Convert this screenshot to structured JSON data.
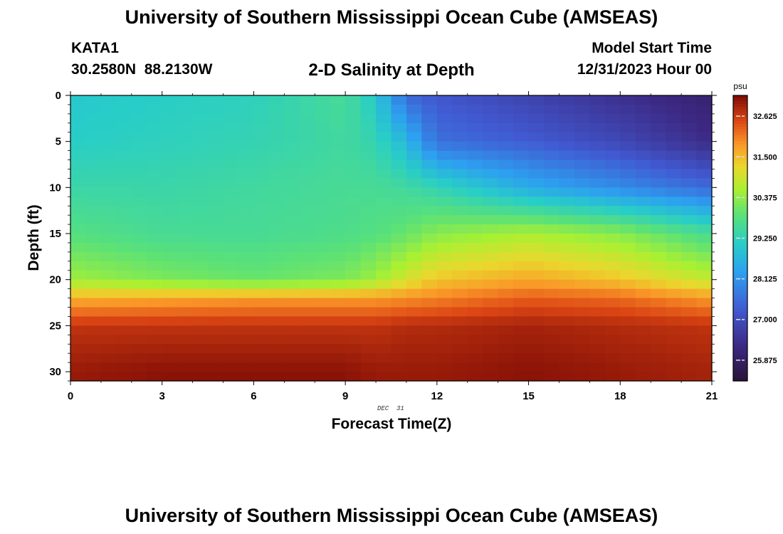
{
  "header": {
    "title": "University of Southern Mississippi Ocean Cube (AMSEAS)",
    "station": "KATA1",
    "coords": "30.2580N  88.2130W",
    "subtitle": "2-D Salinity at Depth",
    "start_label": "Model Start Time",
    "start_value": "12/31/2023 Hour 00",
    "footer_title": "University of Southern Mississippi Ocean Cube (AMSEAS)"
  },
  "chart_data": {
    "type": "heatmap",
    "title": "2-D Salinity at Depth",
    "xlabel": "Forecast Time(Z)",
    "ylabel": "Depth (ft)",
    "date_label": "DEC  31",
    "x_ticks": [
      0,
      3,
      6,
      9,
      12,
      15,
      18,
      21
    ],
    "y_ticks": [
      0,
      5,
      10,
      15,
      20,
      25,
      30
    ],
    "xlim": [
      0,
      21
    ],
    "ylim": [
      31,
      0
    ],
    "colorbar": {
      "unit": "psu",
      "ticks": [
        "32.625",
        "31.500",
        "30.375",
        "29.250",
        "28.125",
        "27.000",
        "25.875"
      ],
      "tick_values": [
        32.625,
        31.5,
        30.375,
        29.25,
        28.125,
        27.0,
        25.875
      ],
      "range": [
        25.3,
        33.2
      ]
    },
    "depths": [
      0,
      5,
      10,
      15,
      20,
      22,
      25,
      30
    ],
    "times": [
      0,
      3,
      6,
      9,
      10,
      11,
      12,
      15,
      18,
      21
    ],
    "salinity": [
      [
        29.0,
        29.1,
        29.2,
        29.6,
        29.0,
        27.5,
        27.2,
        26.8,
        26.4,
        26.0
      ],
      [
        29.1,
        29.2,
        29.3,
        29.5,
        29.3,
        28.7,
        27.6,
        27.3,
        26.9,
        26.3
      ],
      [
        29.4,
        29.4,
        29.5,
        29.6,
        29.6,
        29.5,
        29.3,
        28.5,
        28.0,
        27.5
      ],
      [
        29.8,
        29.6,
        29.6,
        29.7,
        29.8,
        30.0,
        30.3,
        30.6,
        30.3,
        29.6
      ],
      [
        30.5,
        30.2,
        30.0,
        30.2,
        30.5,
        31.0,
        31.4,
        31.7,
        31.4,
        30.8
      ],
      [
        31.6,
        31.7,
        31.8,
        31.8,
        31.8,
        31.9,
        32.0,
        32.3,
        32.2,
        31.8
      ],
      [
        32.7,
        32.7,
        32.7,
        32.7,
        32.7,
        32.8,
        32.8,
        32.9,
        32.8,
        32.7
      ],
      [
        33.0,
        33.1,
        33.1,
        33.1,
        33.0,
        33.0,
        33.0,
        33.1,
        33.0,
        32.9
      ]
    ],
    "grid": false,
    "legend": "none"
  }
}
